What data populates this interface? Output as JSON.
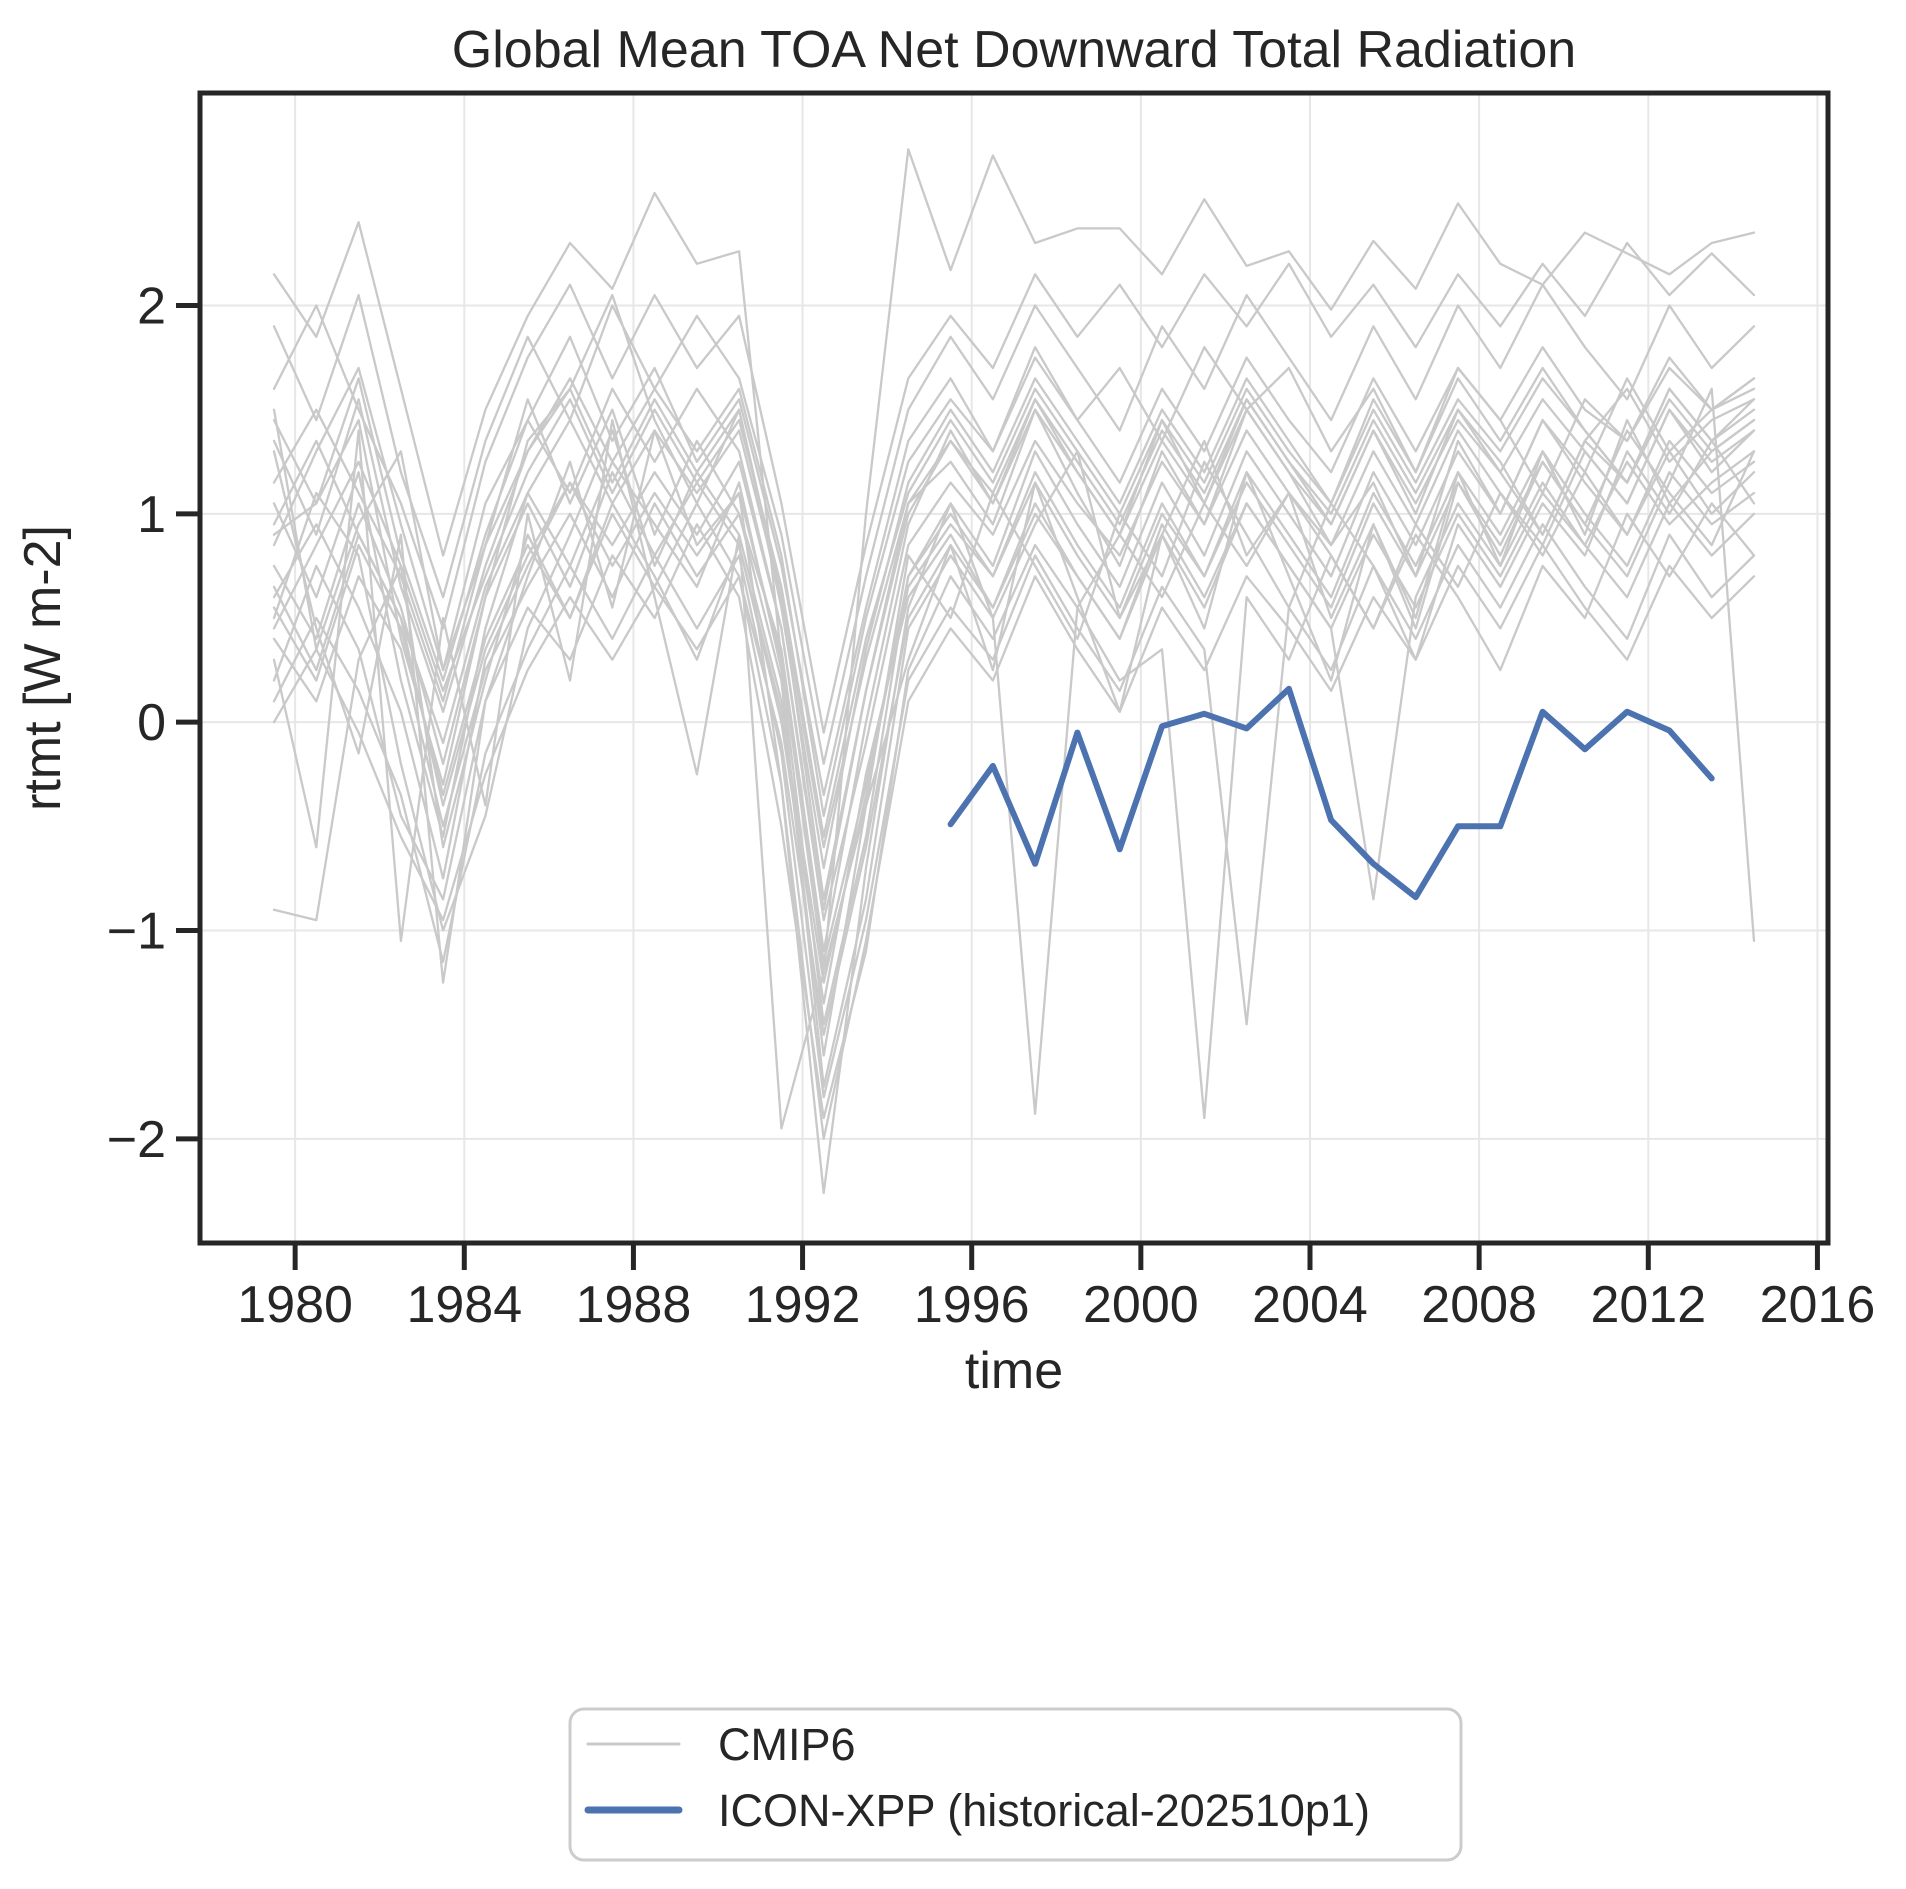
{
  "colors": {
    "background": "#ffffff",
    "text": "#262626",
    "spine": "#262626",
    "grid": "#e7e7e7",
    "cmip6": "#c9c9c9",
    "icon_xpp": "#4c72b0"
  },
  "legend": {
    "entries": [
      {
        "label": "CMIP6",
        "color": "#c9c9c9"
      },
      {
        "label": "ICON-XPP (historical-202510p1)",
        "color": "#4c72b0"
      }
    ]
  },
  "chart_data": {
    "type": "line",
    "title": "Global Mean TOA Net Downward Total Radiation",
    "xlabel": "time",
    "ylabel": "rtmt [W m-2]",
    "xlim": [
      1977.75,
      2016.25
    ],
    "ylim": [
      -2.5,
      3.02
    ],
    "grid": true,
    "legend_position": "below axes, centered",
    "x_ticks": [
      {
        "value": 1980,
        "label": "1980"
      },
      {
        "value": 1984,
        "label": "1984"
      },
      {
        "value": 1988,
        "label": "1988"
      },
      {
        "value": 1992,
        "label": "1992"
      },
      {
        "value": 1996,
        "label": "1996"
      },
      {
        "value": 2000,
        "label": "2000"
      },
      {
        "value": 2004,
        "label": "2004"
      },
      {
        "value": 2008,
        "label": "2008"
      },
      {
        "value": 2012,
        "label": "2012"
      },
      {
        "value": 2016,
        "label": "2016"
      }
    ],
    "y_ticks": [
      {
        "value": -2,
        "label": "−2"
      },
      {
        "value": -1,
        "label": "−1"
      },
      {
        "value": 0,
        "label": "0"
      },
      {
        "value": 1,
        "label": "1"
      },
      {
        "value": 2,
        "label": "2"
      }
    ],
    "cmip6": {
      "name": "CMIP6",
      "color": "#c9c9c9",
      "x": [
        1979.5,
        1980.5,
        1981.5,
        1982.5,
        1983.5,
        1984.5,
        1985.5,
        1986.5,
        1987.5,
        1988.5,
        1989.5,
        1990.5,
        1991.5,
        1992.5,
        1993.5,
        1994.5,
        1995.5,
        1996.5,
        1997.5,
        1998.5,
        1999.5,
        2000.5,
        2001.5,
        2002.5,
        2003.5,
        2004.5,
        2005.5,
        2006.5,
        2007.5,
        2008.5,
        2009.5,
        2010.5,
        2011.5,
        2012.5,
        2013.5,
        2014.5
      ],
      "members": [
        [
          2.15,
          1.85,
          2.4,
          1.6,
          0.8,
          1.5,
          1.95,
          2.3,
          2.08,
          2.54,
          2.2,
          2.26,
          0.3,
          -1.2,
          1.0,
          2.75,
          2.17,
          2.72,
          2.3,
          2.37,
          2.37,
          2.15,
          2.51,
          2.19,
          2.26,
          1.98,
          2.31,
          2.08,
          2.49,
          2.2,
          2.1,
          2.35,
          2.25,
          2.15,
          2.3,
          2.35
        ],
        [
          0.9,
          1.05,
          1.45,
          0.4,
          -0.3,
          0.6,
          1.35,
          1.6,
          2.05,
          1.45,
          1.05,
          1.5,
          0.6,
          -0.85,
          0.15,
          1.05,
          1.25,
          0.95,
          1.5,
          1.1,
          0.75,
          1.3,
          0.95,
          1.5,
          1.2,
          0.85,
          1.15,
          0.7,
          1.35,
          1.0,
          1.45,
          1.2,
          1.65,
          1.3,
          1.5,
          1.6
        ],
        [
          1.3,
          0.45,
          -0.15,
          0.9,
          -1.25,
          0.1,
          0.7,
          1.25,
          0.55,
          1.4,
          0.85,
          1.1,
          -0.3,
          -2.26,
          -0.7,
          0.55,
          1.05,
          0.5,
          0.95,
          1.3,
          0.5,
          0.9,
          1.35,
          0.8,
          1.1,
          0.5,
          0.95,
          0.45,
          1.15,
          0.8,
          1.25,
          0.95,
          1.4,
          1.1,
          0.85,
          1.3
        ],
        [
          0.5,
          1.1,
          0.8,
          -0.2,
          -1.0,
          -0.45,
          0.45,
          0.9,
          1.4,
          0.75,
          1.2,
          0.9,
          0.1,
          -1.6,
          -0.4,
          0.8,
          0.5,
          1.1,
          0.75,
          0.4,
          1.0,
          0.7,
          1.25,
          0.9,
          0.55,
          1.05,
          0.75,
          0.3,
          0.95,
          0.65,
          1.05,
          0.8,
          1.3,
          1.0,
          1.35,
          1.05
        ],
        [
          0.2,
          0.75,
          0.35,
          -0.45,
          -0.85,
          0.1,
          0.55,
          0.3,
          0.8,
          0.5,
          0.95,
          0.6,
          -0.5,
          -1.9,
          -1.1,
          0.25,
          0.7,
          0.4,
          0.85,
          0.55,
          0.2,
          0.35,
          -1.9,
          0.6,
          0.3,
          0.8,
          0.45,
          0.9,
          0.6,
          0.25,
          0.75,
          0.5,
          1.0,
          0.7,
          1.05,
          0.8
        ],
        [
          1.5,
          0.35,
          0.95,
          1.3,
          0.25,
          0.85,
          1.55,
          1.05,
          1.5,
          0.9,
          1.35,
          1.0,
          0.35,
          -1.1,
          0.0,
          0.95,
          1.4,
          1.05,
          1.55,
          1.2,
          0.9,
          1.45,
          1.05,
          1.55,
          1.25,
          0.95,
          1.4,
          1.0,
          1.5,
          1.2,
          0.9,
          1.35,
          1.6,
          1.25,
          1.45,
          1.55
        ],
        [
          0.85,
          1.3,
          1.7,
          0.95,
          0.25,
          1.05,
          1.45,
          1.85,
          1.35,
          1.7,
          1.25,
          1.55,
          0.75,
          -0.35,
          0.55,
          1.35,
          1.65,
          1.3,
          1.8,
          1.45,
          1.7,
          1.35,
          1.8,
          1.5,
          1.7,
          1.3,
          1.6,
          1.2,
          1.7,
          1.45,
          1.8,
          1.5,
          1.35,
          1.7,
          1.5,
          1.65
        ],
        [
          -0.9,
          -0.95,
          0.3,
          0.75,
          -0.6,
          0.2,
          0.9,
          0.5,
          1.05,
          0.7,
          0.3,
          0.85,
          0.0,
          -1.35,
          -0.25,
          0.6,
          0.9,
          0.55,
          1.0,
          0.7,
          0.4,
          0.95,
          0.6,
          1.05,
          0.75,
          0.45,
          0.9,
          0.55,
          1.0,
          0.7,
          1.1,
          0.85,
          1.25,
          0.95,
          1.15,
          1.3
        ],
        [
          1.05,
          0.6,
          1.2,
          0.2,
          -0.55,
          0.45,
          1.1,
          0.75,
          1.25,
          0.95,
          0.65,
          1.15,
          0.25,
          -1.45,
          -0.55,
          0.7,
          1.05,
          0.75,
          1.3,
          0.95,
          0.65,
          1.15,
          0.8,
          1.3,
          1.0,
          0.7,
          1.2,
          0.85,
          1.3,
          1.0,
          1.45,
          1.15,
          0.9,
          1.35,
          1.1,
          1.25
        ],
        [
          0.6,
          0.95,
          0.55,
          0.05,
          -0.75,
          0.3,
          0.75,
          1.15,
          0.85,
          1.2,
          0.9,
          1.25,
          0.45,
          -0.95,
          -0.1,
          0.85,
          1.15,
          0.9,
          1.35,
          1.05,
          0.8,
          1.25,
          0.95,
          1.4,
          1.1,
          0.85,
          1.3,
          0.95,
          1.4,
          1.1,
          0.85,
          1.3,
          1.05,
          1.5,
          1.2,
          1.4
        ],
        [
          1.6,
          2.0,
          1.5,
          1.05,
          0.45,
          1.25,
          1.75,
          2.1,
          1.65,
          2.05,
          1.7,
          1.95,
          1.05,
          -0.05,
          0.85,
          1.65,
          1.95,
          1.7,
          2.15,
          1.85,
          2.1,
          1.8,
          2.15,
          1.9,
          2.2,
          1.85,
          2.1,
          1.8,
          2.15,
          1.9,
          2.2,
          1.95,
          2.3,
          2.05,
          2.25,
          2.05
        ],
        [
          0.4,
          0.1,
          0.7,
          0.35,
          -0.5,
          0.25,
          0.65,
          1.0,
          0.6,
          1.05,
          0.7,
          1.0,
          0.2,
          -1.75,
          -0.85,
          0.45,
          0.8,
          0.5,
          -1.88,
          0.55,
          0.9,
          0.6,
          1.05,
          0.75,
          1.1,
          0.8,
          0.45,
          0.95,
          0.65,
          1.1,
          0.8,
          1.2,
          0.9,
          1.3,
          1.0,
          1.2
        ],
        [
          1.35,
          0.9,
          1.55,
          0.65,
          0.05,
          0.75,
          1.3,
          1.6,
          1.15,
          1.55,
          1.2,
          1.5,
          0.55,
          -0.7,
          0.35,
          1.15,
          1.5,
          1.2,
          1.65,
          1.35,
          1.05,
          1.5,
          1.2,
          1.65,
          1.35,
          1.05,
          1.55,
          1.2,
          1.65,
          1.35,
          1.7,
          1.4,
          1.15,
          1.6,
          1.35,
          1.55
        ],
        [
          0.3,
          -0.6,
          1.4,
          -1.05,
          0.5,
          -0.4,
          1.0,
          0.2,
          1.45,
          0.6,
          -0.25,
          0.9,
          -1.95,
          -1.2,
          -0.4,
          0.3,
          0.85,
          0.25,
          1.15,
          0.6,
          0.05,
          0.9,
          0.45,
          1.2,
          0.7,
          0.2,
          0.95,
          0.5,
          1.2,
          0.75,
          1.3,
          0.9,
          1.45,
          1.05,
          1.3,
          1.45
        ],
        [
          0.75,
          0.4,
          1.05,
          0.55,
          -0.2,
          0.6,
          1.05,
          0.65,
          1.2,
          0.8,
          1.15,
          0.85,
          0.05,
          -1.25,
          -0.35,
          0.7,
          1.0,
          0.7,
          1.2,
          0.85,
          0.55,
          1.05,
          0.7,
          1.2,
          0.9,
          0.6,
          1.1,
          0.75,
          1.2,
          0.9,
          1.3,
          1.0,
          0.75,
          1.2,
          0.95,
          1.1
        ],
        [
          1.15,
          1.5,
          1.1,
          0.7,
          0.1,
          0.85,
          1.3,
          1.65,
          1.25,
          1.6,
          1.3,
          1.6,
          0.8,
          -0.45,
          0.5,
          1.25,
          1.55,
          1.3,
          1.75,
          1.45,
          1.15,
          1.6,
          1.3,
          1.75,
          1.45,
          1.2,
          1.65,
          1.3,
          1.7,
          1.45,
          1.1,
          1.55,
          1.35,
          1.75,
          1.5,
          1.65
        ],
        [
          0.55,
          0.2,
          0.85,
          0.45,
          -0.35,
          0.4,
          0.85,
          0.5,
          1.0,
          0.65,
          1.05,
          0.7,
          -0.1,
          -1.5,
          -0.6,
          0.5,
          0.85,
          0.55,
          1.05,
          0.7,
          0.4,
          0.9,
          0.55,
          1.05,
          0.75,
          0.45,
          -0.85,
          0.6,
          1.05,
          0.75,
          1.15,
          0.85,
          0.6,
          1.05,
          0.8,
          1.0
        ],
        [
          1.9,
          1.45,
          2.05,
          1.2,
          0.6,
          1.35,
          1.85,
          1.45,
          2.0,
          1.6,
          1.95,
          1.65,
          0.9,
          -0.2,
          0.7,
          1.5,
          1.85,
          1.55,
          2.0,
          1.7,
          1.4,
          1.9,
          1.6,
          2.05,
          1.75,
          1.45,
          1.9,
          1.55,
          2.0,
          1.7,
          2.1,
          1.8,
          1.55,
          2.0,
          1.7,
          1.9
        ],
        [
          0.1,
          0.5,
          0.15,
          -0.35,
          -1.15,
          -0.15,
          0.35,
          0.75,
          0.4,
          0.8,
          0.45,
          0.8,
          -0.15,
          -1.8,
          -0.95,
          0.2,
          0.55,
          0.3,
          0.8,
          0.45,
          0.15,
          0.65,
          0.35,
          -1.45,
          0.55,
          0.25,
          0.75,
          0.4,
          0.85,
          0.55,
          0.95,
          0.65,
          0.4,
          0.9,
          0.6,
          0.8
        ],
        [
          0.95,
          1.35,
          0.9,
          0.5,
          -0.1,
          0.65,
          1.1,
          1.45,
          1.05,
          1.4,
          1.1,
          1.4,
          0.6,
          -0.6,
          0.3,
          1.05,
          1.35,
          1.1,
          1.55,
          1.25,
          0.95,
          1.4,
          1.1,
          1.55,
          1.25,
          1.0,
          1.45,
          1.1,
          1.5,
          1.25,
          0.9,
          1.35,
          1.15,
          1.55,
          1.3,
          1.45
        ],
        [
          1.45,
          1.05,
          1.65,
          0.8,
          0.2,
          0.9,
          1.45,
          1.1,
          1.6,
          1.25,
          1.6,
          1.3,
          0.45,
          -0.9,
          0.15,
          1.0,
          1.35,
          1.05,
          1.5,
          1.2,
          0.9,
          1.35,
          1.05,
          1.5,
          1.2,
          0.95,
          1.4,
          1.05,
          1.45,
          1.2,
          1.55,
          1.3,
          1.05,
          1.5,
          1.25,
          1.4
        ],
        [
          0.65,
          0.25,
          0.9,
          0.5,
          -0.4,
          0.35,
          0.8,
          1.15,
          0.75,
          1.1,
          0.8,
          1.1,
          0.3,
          -1.15,
          -0.3,
          0.65,
          0.95,
          0.7,
          1.15,
          0.8,
          0.5,
          1.0,
          0.7,
          1.15,
          0.85,
          0.55,
          1.05,
          0.7,
          1.15,
          0.85,
          1.25,
          0.95,
          0.7,
          1.15,
          1.6,
          -1.05
        ],
        [
          0.45,
          0.85,
          1.25,
          0.75,
          0.15,
          0.7,
          1.2,
          1.55,
          1.1,
          1.5,
          1.15,
          1.45,
          0.65,
          -0.55,
          0.4,
          1.1,
          1.45,
          1.15,
          1.6,
          1.3,
          1.0,
          1.45,
          1.15,
          1.6,
          1.3,
          1.05,
          1.5,
          1.15,
          1.55,
          1.3,
          1.65,
          1.4,
          1.15,
          1.6,
          1.35,
          1.5
        ],
        [
          0.0,
          0.35,
          -0.05,
          -0.55,
          -0.95,
          -0.25,
          0.25,
          0.6,
          0.3,
          0.65,
          0.35,
          0.7,
          -0.3,
          -2.0,
          -1.05,
          0.1,
          0.45,
          0.2,
          0.7,
          0.35,
          0.05,
          0.55,
          0.25,
          0.7,
          0.45,
          0.15,
          0.6,
          0.3,
          0.75,
          0.45,
          0.85,
          0.55,
          0.3,
          0.75,
          0.5,
          0.7
        ]
      ]
    },
    "icon_xpp": {
      "name": "ICON-XPP (historical-202510p1)",
      "color": "#4c72b0",
      "x": [
        1995.5,
        1996.5,
        1997.5,
        1998.5,
        1999.5,
        2000.5,
        2001.5,
        2002.5,
        2003.5,
        2004.5,
        2005.5,
        2006.5,
        2007.5,
        2008.5,
        2009.5,
        2010.5,
        2011.5,
        2012.5,
        2013.5
      ],
      "values": [
        -0.49,
        -0.21,
        -0.68,
        -0.05,
        -0.61,
        -0.02,
        0.04,
        -0.03,
        0.16,
        -0.47,
        -0.68,
        -0.84,
        -0.5,
        -0.5,
        0.05,
        -0.13,
        0.05,
        -0.04,
        -0.27
      ]
    }
  }
}
